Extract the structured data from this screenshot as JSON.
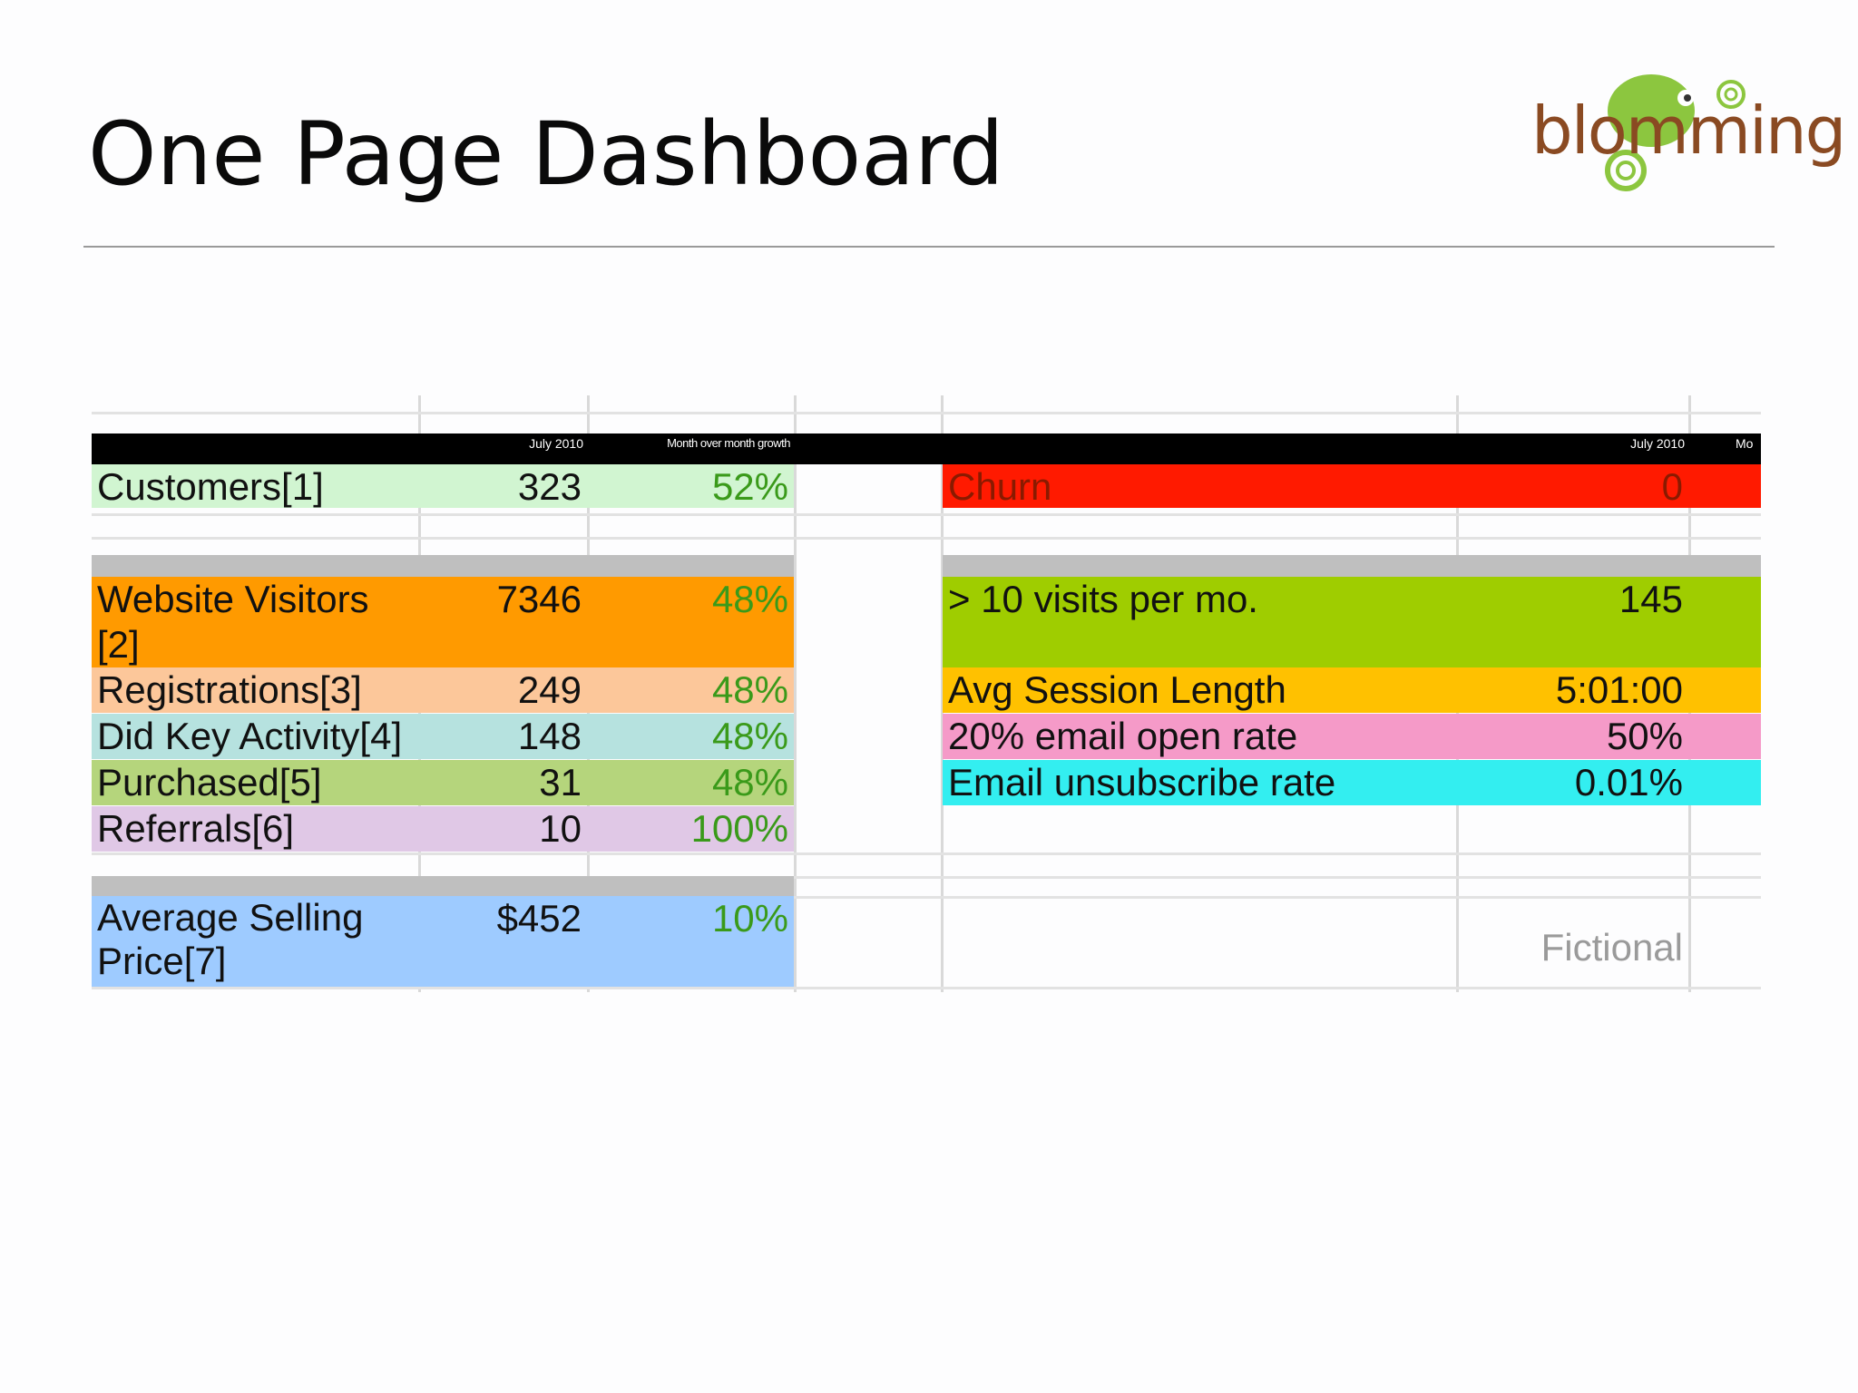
{
  "slide": {
    "title": "One Page Dashboard",
    "logo_text": "blomming"
  },
  "colors": {
    "customers": "#d1f5d1",
    "gray_band": "#bfbfbf",
    "visitors": "#ff9a00",
    "registrations": "#fcc79a",
    "key_activity": "#b6e2df",
    "purchased": "#b5d57c",
    "referrals": "#e0c8e6",
    "asp": "#9ecbff",
    "churn": "#ff1a00",
    "visits": "#9fcd00",
    "session": "#ffc100",
    "email_open": "#f59ac8",
    "unsubscribe": "#33eef0",
    "header_bg": "#000000",
    "growth_text": "#3a9a1a"
  },
  "left_table": {
    "headers": {
      "month": "July 2010",
      "growth": "Month over month growth"
    },
    "rows": [
      {
        "label": "Customers[1]",
        "value": "323",
        "growth": "52%"
      },
      {
        "label": "Website Visitors [2]",
        "value": "7346",
        "growth": "48%"
      },
      {
        "label": "Registrations[3]",
        "value": "249",
        "growth": "48%"
      },
      {
        "label": "Did Key Activity[4]",
        "value": "148",
        "growth": "48%"
      },
      {
        "label": "Purchased[5]",
        "value": "31",
        "growth": "48%"
      },
      {
        "label": "Referrals[6]",
        "value": "10",
        "growth": "100%"
      },
      {
        "label": "Average Selling Price[7]",
        "value": "$452",
        "growth": "10%"
      }
    ]
  },
  "right_table": {
    "headers": {
      "month": "July 2010",
      "extra": "Mo"
    },
    "rows": [
      {
        "label": "Churn",
        "value": "0"
      },
      {
        "label": "> 10 visits per mo.",
        "value": "145"
      },
      {
        "label": "Avg Session Length",
        "value": "5:01:00"
      },
      {
        "label": "20% email open rate",
        "value": "50%"
      },
      {
        "label": "Email unsubscribe rate",
        "value": "0.01%"
      }
    ],
    "note": "Fictional"
  }
}
